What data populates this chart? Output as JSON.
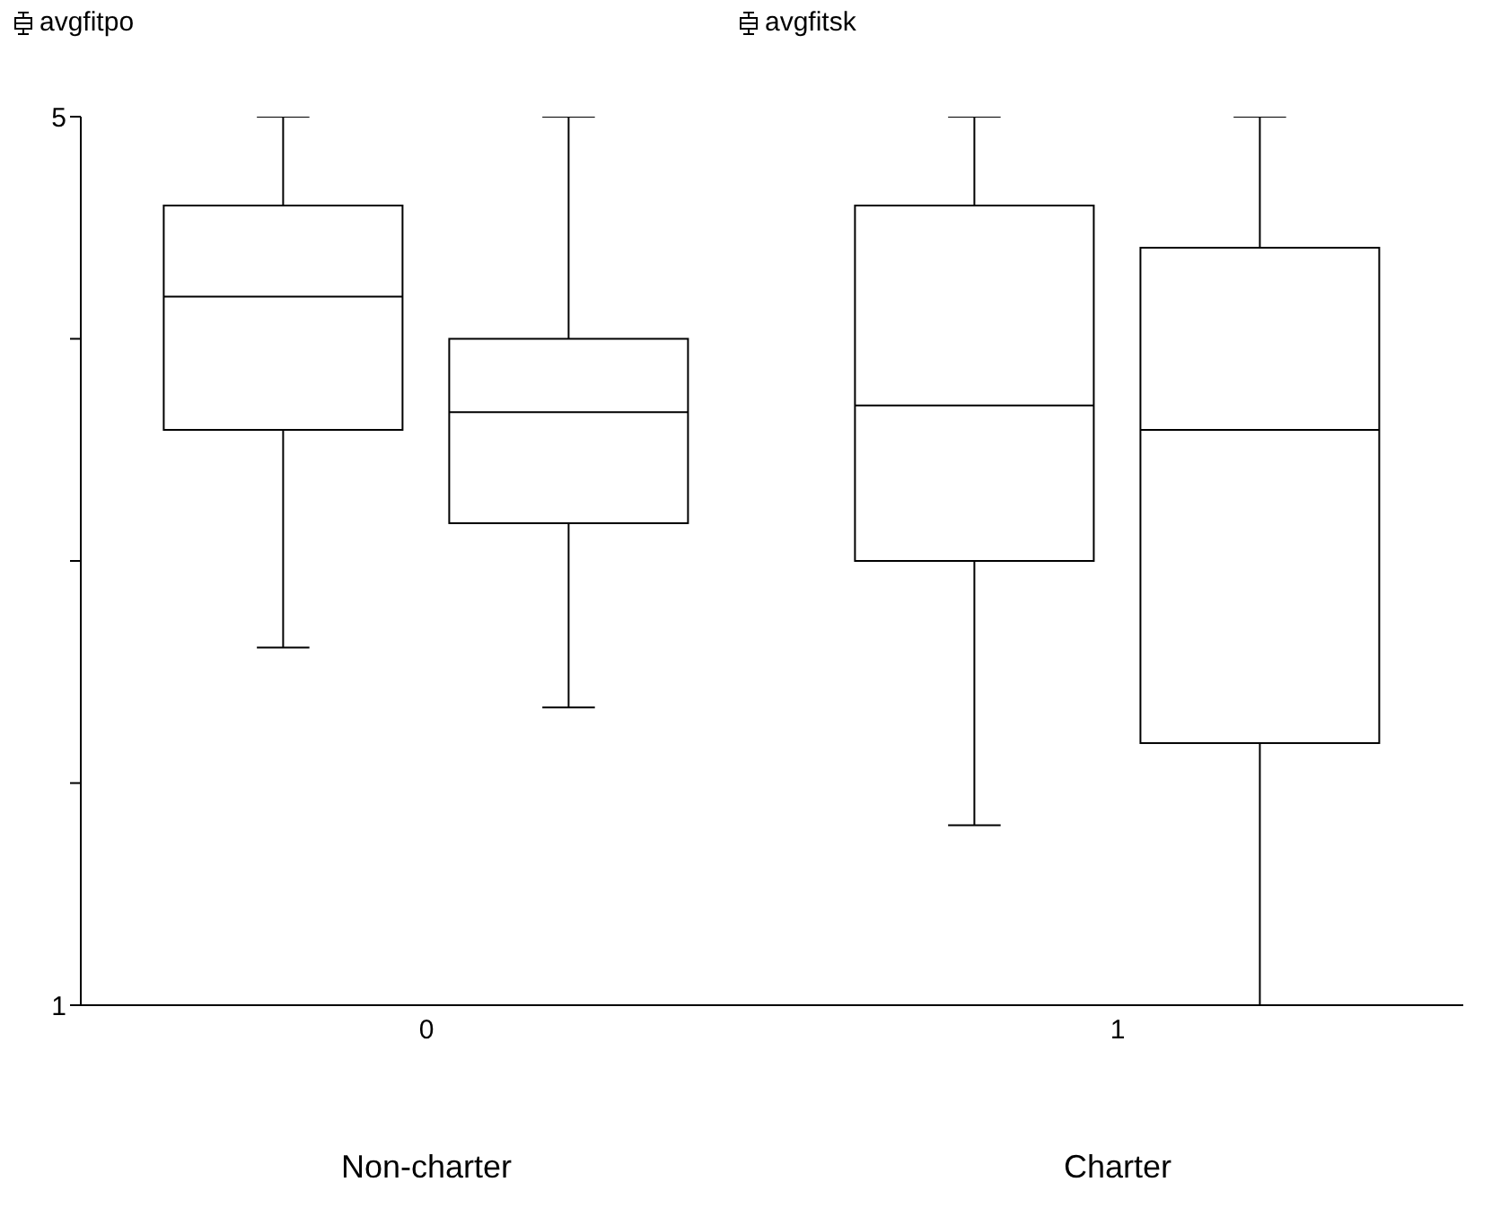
{
  "chart_data": {
    "type": "box",
    "categories": [
      "0",
      "1"
    ],
    "series": [
      {
        "name": "avgfitpo",
        "color": "#000000",
        "boxes": [
          {
            "low": 2.61,
            "q1": 3.59,
            "median": 4.19,
            "q3": 4.6,
            "high": 5
          },
          {
            "low": 1.81,
            "q1": 3.0,
            "median": 3.7,
            "q3": 4.6,
            "high": 5
          }
        ]
      },
      {
        "name": "avgfitsk",
        "color": "#000000",
        "boxes": [
          {
            "low": 2.34,
            "q1": 3.17,
            "median": 3.67,
            "q3": 4.0,
            "high": 5
          },
          {
            "low": 1.0,
            "q1": 2.18,
            "median": 3.59,
            "q3": 4.41,
            "high": 5
          }
        ]
      }
    ],
    "ylim": [
      1,
      5
    ],
    "yticks": [
      1,
      {
        "value": 2,
        "label": null
      },
      {
        "value": 3,
        "label": null
      },
      {
        "value": 4,
        "label": null
      },
      5
    ],
    "legend": "top",
    "annotations": [
      "Non-charter",
      "Charter"
    ]
  }
}
